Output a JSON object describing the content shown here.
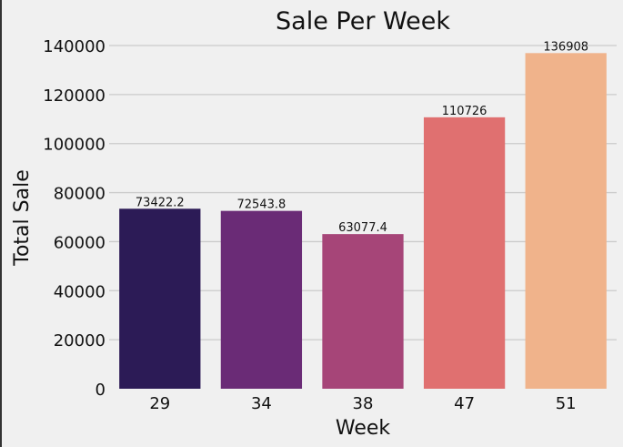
{
  "chart_data": {
    "type": "bar",
    "title": "Sale Per Week",
    "xlabel": "Week",
    "ylabel": "Total Sale",
    "categories": [
      "29",
      "34",
      "38",
      "47",
      "51"
    ],
    "values": [
      73422.2,
      72543.8,
      63077.4,
      110726,
      136908
    ],
    "data_labels": [
      "73422.2",
      "72543.8",
      "63077.4",
      "110726",
      "136908"
    ],
    "colors": [
      "#2c1b56",
      "#6a2b76",
      "#a64578",
      "#e07070",
      "#f0b38b"
    ],
    "ylim": [
      0,
      140000
    ],
    "yticks": [
      0,
      20000,
      40000,
      60000,
      80000,
      100000,
      120000,
      140000
    ],
    "grid": "horizontal",
    "legend": "none"
  }
}
